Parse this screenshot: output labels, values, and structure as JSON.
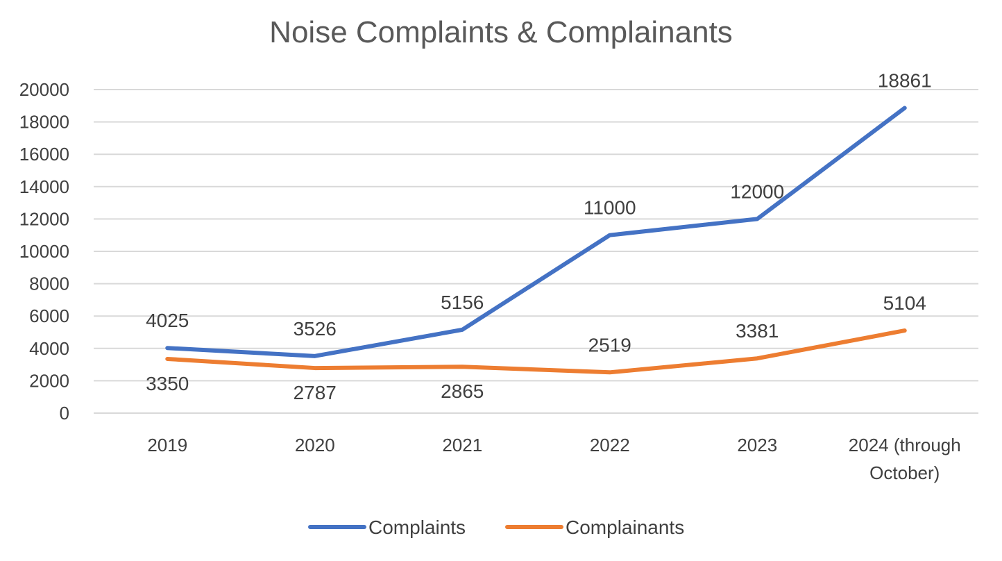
{
  "chart_data": {
    "type": "line",
    "title": "Noise Complaints & Complainants",
    "categories": [
      "2019",
      "2020",
      "2021",
      "2022",
      "2023",
      "2024 (through October)"
    ],
    "category_lines": [
      [
        "2019"
      ],
      [
        "2020"
      ],
      [
        "2021"
      ],
      [
        "2022"
      ],
      [
        "2023"
      ],
      [
        "2024 (through",
        "October)"
      ]
    ],
    "ylim": [
      0,
      20000
    ],
    "yticks": [
      0,
      2000,
      4000,
      6000,
      8000,
      10000,
      12000,
      14000,
      16000,
      18000,
      20000
    ],
    "grid": true,
    "legend": "bottom",
    "series": [
      {
        "name": "Complaints",
        "color": "#4472C4",
        "values": [
          4025,
          3526,
          5156,
          11000,
          12000,
          18861
        ],
        "labels": [
          "4025",
          "3526",
          "5156",
          "11000",
          "12000",
          "18861"
        ]
      },
      {
        "name": "Complainants",
        "color": "#ED7D31",
        "values": [
          3350,
          2787,
          2865,
          2519,
          3381,
          5104
        ],
        "labels": [
          "3350",
          "2787",
          "2865",
          "2519",
          "3381",
          "5104"
        ]
      }
    ]
  }
}
